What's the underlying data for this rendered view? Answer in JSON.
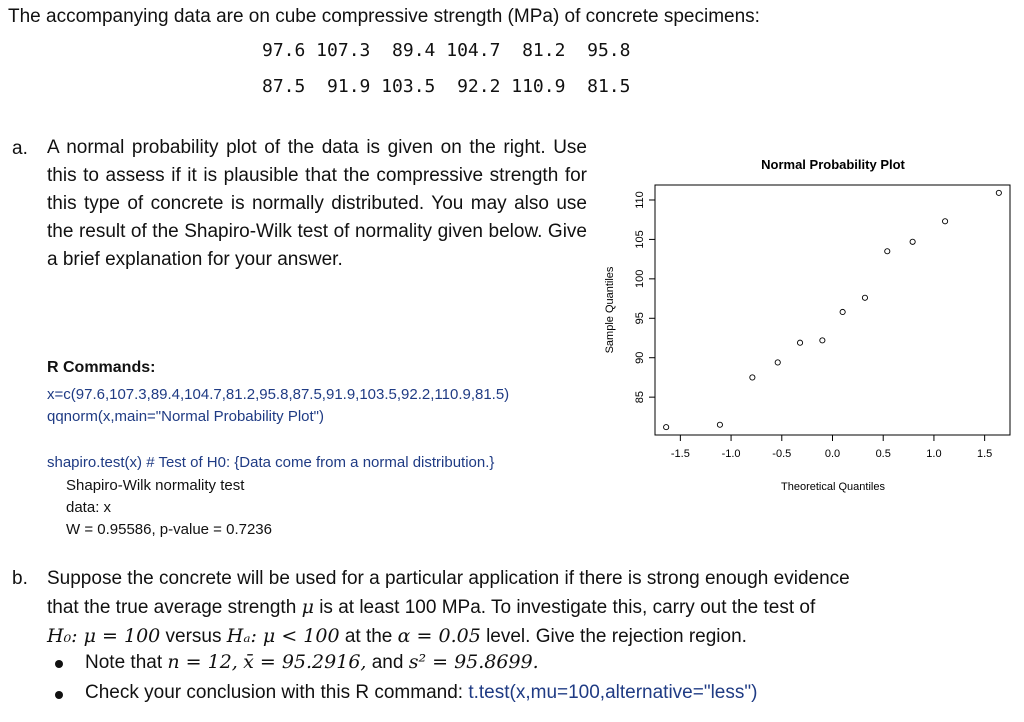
{
  "intro": "The accompanying data are on cube compressive strength (MPa) of concrete specimens:",
  "data_rows": [
    "97.6 107.3  89.4 104.7  81.2  95.8",
    "87.5  91.9 103.5  92.2 110.9  81.5"
  ],
  "part_a": {
    "letter": "a.",
    "text": "A normal probability plot of the data is given on the right. Use this to assess if it is plausible that the compressive strength for this type of concrete is normally distributed. You may also use the result of the Shapiro-Wilk test of normality given below.  Give a brief explanation for your answer."
  },
  "r_block": {
    "heading": "R Commands:",
    "cmd1": "x=c(97.6,107.3,89.4,104.7,81.2,95.8,87.5,91.9,103.5,92.2,110.9,81.5)",
    "cmd2": "qqnorm(x,main=\"Normal Probability Plot\")",
    "cmd3": "shapiro.test(x) # Test of H0: {Data come from a normal distribution.}",
    "out1": "Shapiro-Wilk normality test",
    "out2": "data:  x",
    "out3": "W = 0.95586, p-value = 0.7236"
  },
  "part_b": {
    "letter": "b.",
    "line1": "Suppose the concrete will be used for a particular application if there is strong enough evidence",
    "line2_pre": "that the true average strength",
    "mu": "μ",
    "line2_post": "is at least 100 MPa.  To investigate this, carry out the test of",
    "h0": "H₀: μ = 100",
    "versus": "versus",
    "ha": "Hₐ: μ < 100",
    "at_the": "at the",
    "alpha": "α = 0.05",
    "line3_post": "level.  Give the rejection region.",
    "bullet1_pre": "Note that",
    "n": "n = 12,",
    "xbar": "x̄ = 95.2916,",
    "and": "and",
    "s2": "s² = 95.8699.",
    "bullet2_pre": "Check your conclusion with this R command:",
    "bullet2_cmd": "t.test(x,mu=100,alternative=\"less\")"
  },
  "chart_data": {
    "type": "scatter",
    "title": "Normal Probability Plot",
    "xlabel": "Theoretical Quantiles",
    "ylabel": "Sample Quantiles",
    "xlim": [
      -1.75,
      1.75
    ],
    "ylim": [
      80.2,
      111.9
    ],
    "xticks": [
      -1.5,
      -1.0,
      -0.5,
      0.0,
      0.5,
      1.0,
      1.5
    ],
    "xtick_labels": [
      "-1.5",
      "-1.0",
      "-0.5",
      "0.0",
      "0.5",
      "1.0",
      "1.5"
    ],
    "yticks": [
      85,
      90,
      95,
      100,
      105,
      110
    ],
    "ytick_labels": [
      "85",
      "90",
      "95",
      "100",
      "105",
      "110"
    ],
    "points": [
      {
        "x": -1.64,
        "y": 81.2
      },
      {
        "x": -1.11,
        "y": 81.5
      },
      {
        "x": -0.79,
        "y": 87.5
      },
      {
        "x": -0.54,
        "y": 89.4
      },
      {
        "x": -0.32,
        "y": 91.9
      },
      {
        "x": -0.1,
        "y": 92.2
      },
      {
        "x": 0.1,
        "y": 95.8
      },
      {
        "x": 0.32,
        "y": 97.6
      },
      {
        "x": 0.54,
        "y": 103.5
      },
      {
        "x": 0.79,
        "y": 104.7
      },
      {
        "x": 1.11,
        "y": 107.3
      },
      {
        "x": 1.64,
        "y": 110.9
      }
    ]
  }
}
